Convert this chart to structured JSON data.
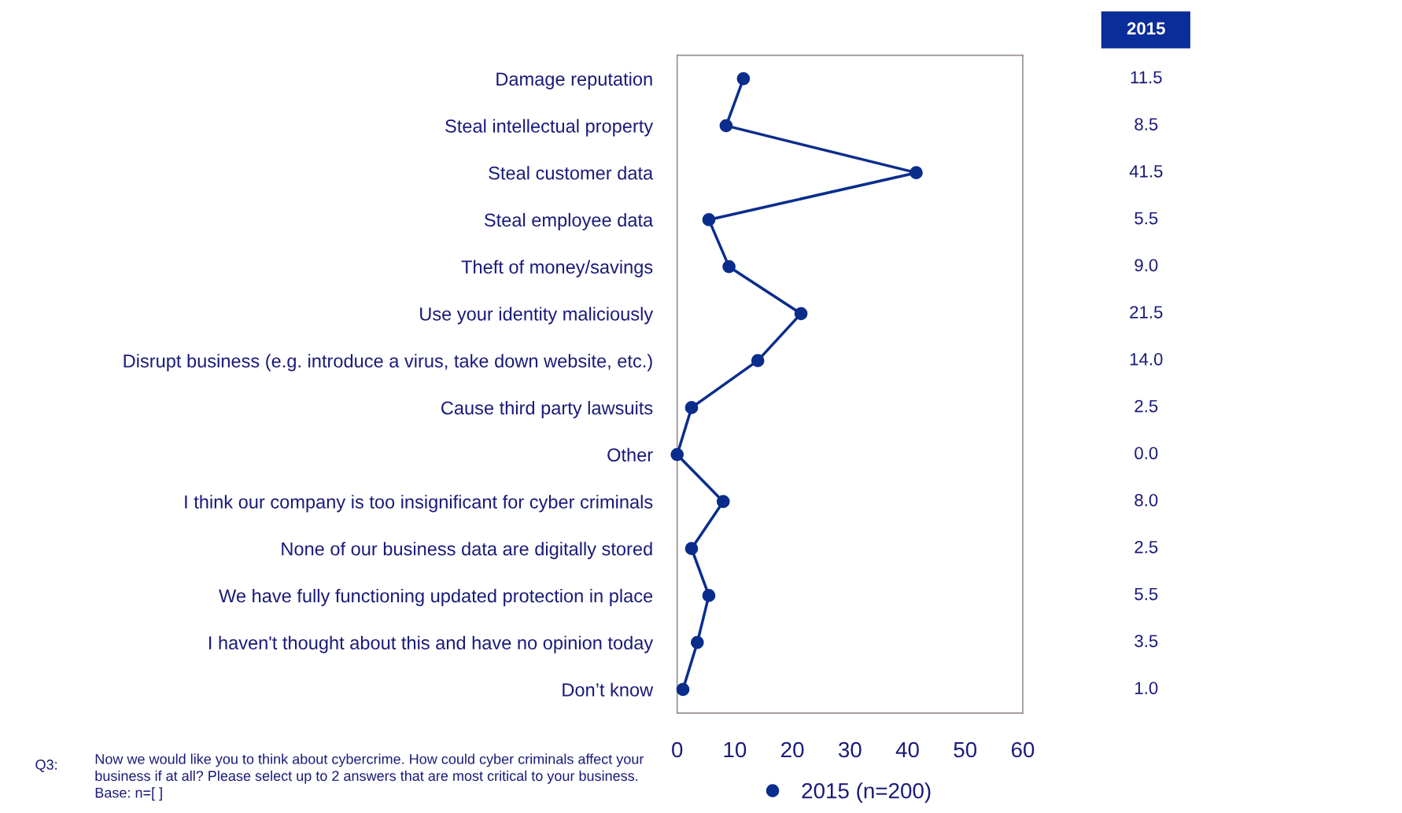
{
  "chart_data": {
    "type": "line",
    "orientation": "horizontal",
    "categories": [
      "Damage reputation",
      "Steal intellectual property",
      "Steal customer data",
      "Steal employee data",
      "Theft of money/savings",
      "Use your identity maliciously",
      "Disrupt business (e.g. introduce a virus, take down website, etc.)",
      "Cause third party lawsuits",
      "Other",
      "I think our company is too insignificant for cyber criminals",
      "None of our business data are digitally stored",
      "We have fully functioning updated protection in place",
      "I haven't thought about this and have no opinion today",
      "Don’t know"
    ],
    "series": [
      {
        "name": "2015 (n=200)",
        "color": "#0a2d8c",
        "values": [
          11.5,
          8.5,
          41.5,
          5.5,
          9.0,
          21.5,
          14.0,
          2.5,
          0.0,
          8.0,
          2.5,
          5.5,
          3.5,
          1.0
        ],
        "value_labels": [
          "11.5",
          "8.5",
          "41.5",
          "5.5",
          "9.0",
          "21.5",
          "14.0",
          "2.5",
          "0.0",
          "8.0",
          "2.5",
          "5.5",
          "3.5",
          "1.0"
        ]
      }
    ],
    "xlim": [
      0,
      60
    ],
    "xticks": [
      0,
      10,
      20,
      30,
      40,
      50,
      60
    ],
    "marker": "circle",
    "line_style": "solid",
    "grid": false,
    "legend": "bottom",
    "annotations": [
      "2015",
      "Q3:",
      "Now we would like you to think about cybercrime. How could cyber criminals affect your\nbusiness if at all? Please select up to 2 answers that are most critical to your business.\nBase: n=[ ]"
    ]
  }
}
